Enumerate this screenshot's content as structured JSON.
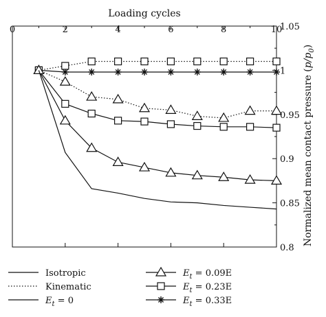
{
  "chart_data": {
    "type": "line",
    "title": "",
    "xlabel": "Loading cycles",
    "ylabel_main": "Normalized mean contact pressure (",
    "ylabel_var": "p/p",
    "ylabel_sub": "0",
    "ylabel_close": ")",
    "xlim": [
      0,
      10
    ],
    "ylim": [
      0.8,
      1.05
    ],
    "xticks": [
      0,
      2,
      4,
      6,
      8,
      10
    ],
    "yticks": [
      0.8,
      0.85,
      0.9,
      0.95,
      1,
      1.05
    ],
    "ytick_labels": [
      "0.8",
      "0.85",
      "0.9",
      "0.95",
      "1",
      "1.05"
    ],
    "xaxis_position": "top",
    "yaxis_position": "right",
    "grid": false,
    "legend_position": "bottom",
    "series": [
      {
        "key": "s0009",
        "label_prefix": "E",
        "label_sub": "t",
        "label_suffix": " = 0.09E",
        "linestyle": "dotted",
        "marker": "triangle",
        "x": [
          1,
          2,
          3,
          4,
          5,
          6,
          7,
          8,
          9,
          10
        ],
        "y": [
          1.0,
          0.987,
          0.97,
          0.967,
          0.957,
          0.955,
          0.948,
          0.946,
          0.954,
          0.954
        ]
      },
      {
        "key": "s0023",
        "label_prefix": "E",
        "label_sub": "t",
        "label_suffix": " = 0.23E",
        "linestyle": "solid",
        "marker": "square",
        "x": [
          1,
          2,
          3,
          4,
          5,
          6,
          7,
          8,
          9,
          10
        ],
        "y": [
          1.0,
          0.962,
          0.951,
          0.943,
          0.942,
          0.939,
          0.937,
          0.936,
          0.936,
          0.935
        ]
      },
      {
        "key": "s0033",
        "label_prefix": "E",
        "label_sub": "t",
        "label_suffix": " = 0.33E",
        "linestyle": "solid",
        "marker": "star",
        "x": [
          1,
          2,
          3,
          4,
          5,
          6,
          7,
          8,
          9,
          10
        ],
        "y": [
          1.0,
          0.998,
          0.998,
          0.998,
          0.998,
          0.998,
          0.998,
          0.998,
          0.998,
          0.998
        ]
      },
      {
        "key": "kinematic",
        "label": "Kinematic",
        "linestyle": "dotted",
        "marker": "square",
        "x": [
          1,
          2,
          3,
          4,
          5,
          6,
          7,
          8,
          9,
          10
        ],
        "y": [
          1.0,
          1.005,
          1.01,
          1.01,
          1.01,
          1.01,
          1.01,
          1.01,
          1.01,
          1.01
        ]
      },
      {
        "key": "isotropic_tri",
        "label": "Isotropic",
        "linestyle": "solid",
        "marker": "triangle",
        "x": [
          1,
          2,
          3,
          4,
          5,
          6,
          7,
          8,
          9,
          10
        ],
        "y": [
          1.0,
          0.943,
          0.912,
          0.896,
          0.89,
          0.884,
          0.881,
          0.879,
          0.876,
          0.875
        ]
      },
      {
        "key": "et0",
        "label_prefix": "E",
        "label_sub": "t",
        "label_suffix": " = 0",
        "linestyle": "solid",
        "marker": "none",
        "x": [
          1,
          2,
          3,
          4,
          5,
          6,
          7,
          8,
          9,
          10
        ],
        "y": [
          1.0,
          0.907,
          0.866,
          0.861,
          0.855,
          0.851,
          0.85,
          0.847,
          0.845,
          0.843
        ]
      }
    ],
    "legend": [
      {
        "text": "Isotropic",
        "linestyle": "solid",
        "marker": "none",
        "column": 0,
        "row": 0
      },
      {
        "text": "Kinematic",
        "linestyle": "dotted",
        "marker": "none",
        "column": 0,
        "row": 1
      },
      {
        "prefix": "E",
        "sub": "t",
        "suffix": " = 0",
        "linestyle": "solid",
        "marker": "none",
        "column": 0,
        "row": 2
      },
      {
        "prefix": "E",
        "sub": "t",
        "suffix": " = 0.09E",
        "linestyle": "solid",
        "marker": "triangle",
        "column": 1,
        "row": 0
      },
      {
        "prefix": "E",
        "sub": "t",
        "suffix": " = 0.23E",
        "linestyle": "solid",
        "marker": "square",
        "column": 1,
        "row": 1
      },
      {
        "prefix": "E",
        "sub": "t",
        "suffix": " = 0.33E",
        "linestyle": "solid",
        "marker": "star",
        "column": 1,
        "row": 2
      }
    ]
  }
}
